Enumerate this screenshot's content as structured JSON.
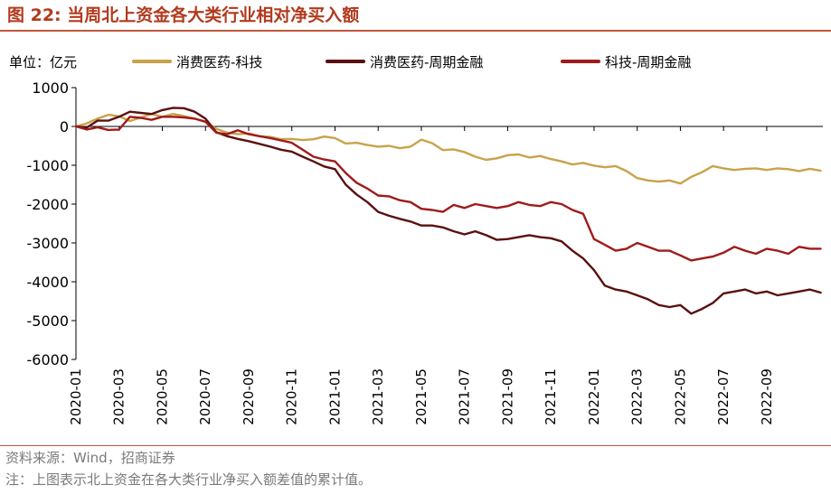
{
  "figure": {
    "title": "图 22:  当周北上资金各大类行业相对净买入额",
    "source": "资料来源：Wind，招商证券",
    "note": "注：上图表示北上资金在各大类行业净买入额差值的累计值。"
  },
  "chart_data": {
    "type": "line",
    "title": "当周北上资金各大类行业相对净买入额",
    "unit_label": "单位：亿元",
    "ylim": [
      -6000,
      1000
    ],
    "yticks": [
      1000,
      0,
      -1000,
      -2000,
      -3000,
      -4000,
      -5000,
      -6000
    ],
    "xlim": [
      0,
      34.6
    ],
    "xticks": [
      "2020-01",
      "2020-03",
      "2020-05",
      "2020-07",
      "2020-09",
      "2020-11",
      "2021-01",
      "2021-03",
      "2021-05",
      "2021-07",
      "2021-09",
      "2021-11",
      "2022-01",
      "2022-03",
      "2022-05",
      "2022-07",
      "2022-09"
    ],
    "grid": false,
    "legend_position": "top",
    "series": [
      {
        "name": "消费医药-科技",
        "color": "#c9a24a",
        "x": [
          0,
          0.5,
          1,
          1.5,
          2,
          2.5,
          3,
          3.5,
          4,
          4.5,
          5,
          5.5,
          6,
          6.5,
          7,
          7.5,
          8,
          8.5,
          9,
          9.5,
          10,
          10.5,
          11,
          11.5,
          12,
          12.5,
          13,
          13.5,
          14,
          14.5,
          15,
          15.5,
          16,
          16.5,
          17,
          17.5,
          18,
          18.5,
          19,
          19.5,
          20,
          20.5,
          21,
          21.5,
          22,
          22.5,
          23,
          23.5,
          24,
          24.5,
          25,
          25.5,
          26,
          26.5,
          27,
          27.5,
          28,
          28.5,
          29,
          29.5,
          30,
          30.5,
          31,
          31.5,
          32,
          32.5,
          33,
          33.5,
          34,
          34.5
        ],
        "values": [
          0,
          80,
          200,
          300,
          260,
          140,
          230,
          320,
          250,
          320,
          270,
          200,
          120,
          -60,
          -160,
          -200,
          -180,
          -250,
          -270,
          -330,
          -320,
          -350,
          -330,
          -260,
          -300,
          -440,
          -420,
          -480,
          -520,
          -500,
          -560,
          -520,
          -340,
          -430,
          -610,
          -590,
          -660,
          -780,
          -860,
          -820,
          -740,
          -720,
          -800,
          -760,
          -840,
          -900,
          -980,
          -940,
          -1010,
          -1050,
          -1020,
          -1150,
          -1330,
          -1390,
          -1420,
          -1390,
          -1470,
          -1300,
          -1180,
          -1020,
          -1080,
          -1120,
          -1090,
          -1080,
          -1120,
          -1080,
          -1100,
          -1150,
          -1090,
          -1140
        ]
      },
      {
        "name": "消费医药-周期金融",
        "color": "#5a1010",
        "x": [
          0,
          0.5,
          1,
          1.5,
          2,
          2.5,
          3,
          3.5,
          4,
          4.5,
          5,
          5.5,
          6,
          6.5,
          7,
          7.5,
          8,
          8.5,
          9,
          9.5,
          10,
          10.5,
          11,
          11.5,
          12,
          12.5,
          13,
          13.5,
          14,
          14.5,
          15,
          15.5,
          16,
          16.5,
          17,
          17.5,
          18,
          18.5,
          19,
          19.5,
          20,
          20.5,
          21,
          21.5,
          22,
          22.5,
          23,
          23.5,
          24,
          24.5,
          25,
          25.5,
          26,
          26.5,
          27,
          27.5,
          28,
          28.5,
          29,
          29.5,
          30,
          30.5,
          31,
          31.5,
          32,
          32.5,
          33,
          33.5,
          34,
          34.5
        ],
        "values": [
          0,
          -30,
          150,
          150,
          250,
          380,
          350,
          320,
          420,
          480,
          470,
          380,
          200,
          -150,
          -250,
          -320,
          -380,
          -450,
          -520,
          -600,
          -650,
          -780,
          -900,
          -1030,
          -1100,
          -1500,
          -1750,
          -1950,
          -2200,
          -2300,
          -2380,
          -2450,
          -2550,
          -2550,
          -2600,
          -2700,
          -2780,
          -2700,
          -2800,
          -2920,
          -2900,
          -2850,
          -2800,
          -2850,
          -2880,
          -2960,
          -3200,
          -3400,
          -3700,
          -4100,
          -4200,
          -4250,
          -4350,
          -4450,
          -4600,
          -4650,
          -4600,
          -4820,
          -4700,
          -4550,
          -4300,
          -4250,
          -4200,
          -4300,
          -4250,
          -4350,
          -4300,
          -4250,
          -4200,
          -4280
        ]
      },
      {
        "name": "科技-周期金融",
        "color": "#a01a1a",
        "x": [
          0,
          0.5,
          1,
          1.5,
          2,
          2.5,
          3,
          3.5,
          4,
          4.5,
          5,
          5.5,
          6,
          6.5,
          7,
          7.5,
          8,
          8.5,
          9,
          9.5,
          10,
          10.5,
          11,
          11.5,
          12,
          12.5,
          13,
          13.5,
          14,
          14.5,
          15,
          15.5,
          16,
          16.5,
          17,
          17.5,
          18,
          18.5,
          19,
          19.5,
          20,
          20.5,
          21,
          21.5,
          22,
          22.5,
          23,
          23.5,
          24,
          24.5,
          25,
          25.5,
          26,
          26.5,
          27,
          27.5,
          28,
          28.5,
          29,
          29.5,
          30,
          30.5,
          31,
          31.5,
          32,
          32.5,
          33,
          33.5,
          34,
          34.5
        ],
        "values": [
          0,
          -80,
          -20,
          -90,
          -80,
          250,
          220,
          170,
          250,
          250,
          230,
          200,
          120,
          -160,
          -200,
          -100,
          -200,
          -250,
          -300,
          -360,
          -420,
          -600,
          -780,
          -850,
          -900,
          -1200,
          -1450,
          -1600,
          -1780,
          -1800,
          -1900,
          -1950,
          -2120,
          -2150,
          -2200,
          -2020,
          -2100,
          -2000,
          -2050,
          -2100,
          -2050,
          -1950,
          -2020,
          -2050,
          -1950,
          -2000,
          -2150,
          -2250,
          -2900,
          -3050,
          -3200,
          -3150,
          -3000,
          -3100,
          -3200,
          -3200,
          -3320,
          -3450,
          -3400,
          -3350,
          -3250,
          -3100,
          -3200,
          -3280,
          -3150,
          -3200,
          -3280,
          -3100,
          -3150,
          -3150
        ]
      }
    ]
  }
}
